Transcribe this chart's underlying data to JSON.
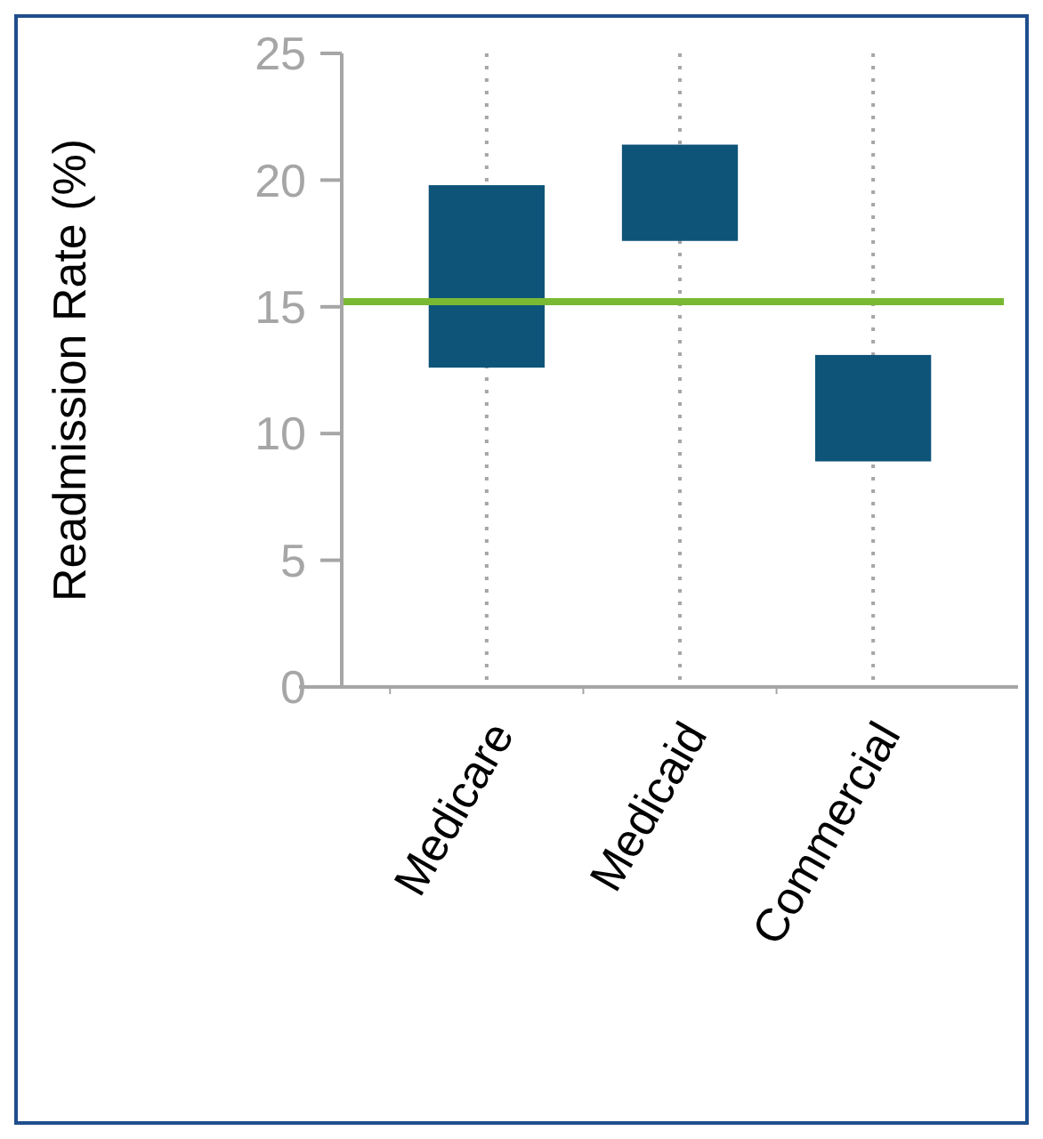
{
  "chart_data": {
    "type": "bar",
    "ylabel": "Readmission Rate (%)",
    "categories": [
      "Medicare",
      "Medicaid",
      "Commercial"
    ],
    "base": [
      12.6,
      17.6,
      8.9
    ],
    "values": [
      7.2,
      3.8,
      4.2
    ],
    "color": "#0e5479",
    "ylim": [
      0,
      25
    ],
    "yticks": [
      0,
      5,
      10,
      15,
      20,
      25
    ],
    "grid": "x",
    "ref_lines": [
      {
        "axis": "y",
        "value": 15.2,
        "color": "#7ab933"
      }
    ]
  }
}
